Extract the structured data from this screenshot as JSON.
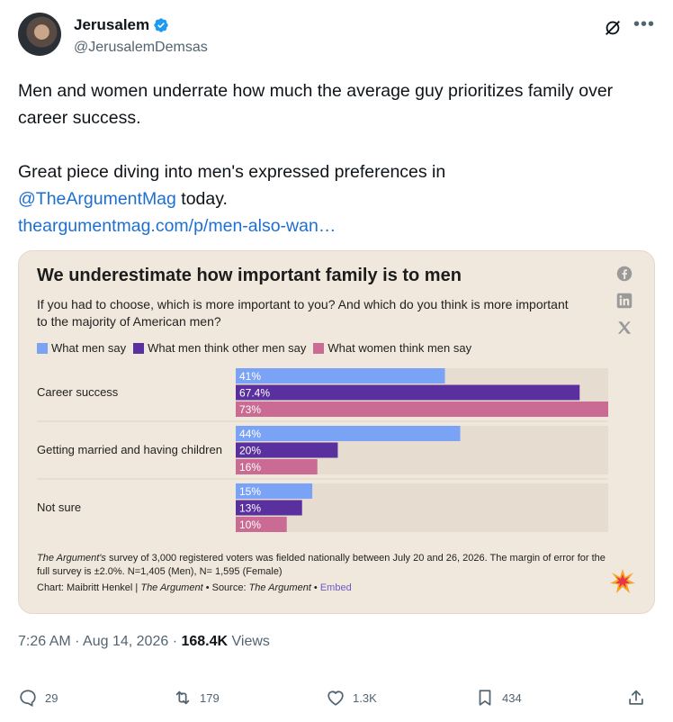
{
  "author": {
    "display_name": "Jerusalem",
    "handle": "@JerusalemDemsas"
  },
  "tweet": {
    "line1": "Men and women underrate how much the average guy prioritizes family over career success.",
    "line2_prefix": "Great piece diving into men's expressed preferences in",
    "mention": "@TheArgumentMag",
    "line2_suffix": " today.",
    "link": "theargumentmag.com/p/men-also-wan…"
  },
  "card": {
    "share_icons": [
      "facebook-icon",
      "linkedin-icon",
      "x-icon"
    ],
    "footnote_source": "The Argument's",
    "footnote_rest": " survey of 3,000 registered voters was fielded nationally between July 20 and 26, 2026. The margin of error for the full survey is ±2.0%. N=1,405 (Men), N= 1,595 (Female)",
    "credit_prefix": "Chart: Maibritt Henkel | ",
    "credit_pub": "The Argument",
    "credit_source_prefix": " • Source: ",
    "credit_source": "The Argument",
    "credit_sep": " • ",
    "embed": "Embed"
  },
  "chart_data": {
    "type": "bar",
    "orientation": "horizontal",
    "title": "We underestimate how important family is to men",
    "subtitle": "If you had to choose, which is more important to you? And which do you think is more important to the majority of American men?",
    "categories": [
      "Career success",
      "Getting married and having children",
      "Not sure"
    ],
    "series": [
      {
        "name": "What men say",
        "color": "#7ba3f5",
        "values": [
          41,
          44,
          15
        ],
        "labels": [
          "41%",
          "44%",
          "15%"
        ]
      },
      {
        "name": "What men think other men say",
        "color": "#5a2f9e",
        "values": [
          67.4,
          20,
          13
        ],
        "labels": [
          "67.4%",
          "20%",
          "13%"
        ]
      },
      {
        "name": "What women think men say",
        "color": "#c96b93",
        "values": [
          73,
          16,
          10
        ],
        "labels": [
          "73%",
          "16%",
          "10%"
        ]
      }
    ],
    "xlim": [
      0,
      73
    ],
    "legend": "top-left",
    "grid": false
  },
  "meta": {
    "time": "7:26 AM",
    "sep": " · ",
    "date": "Aug 14, 2026",
    "views_count": "168.4K",
    "views_label": " Views"
  },
  "actions": {
    "replies": "29",
    "reposts": "179",
    "likes": "1.3K",
    "bookmarks": "434"
  },
  "colors": {
    "verified": "#1d9bf0",
    "link": "#1d6fd1",
    "card_bg": "#f0e8dc",
    "track": "#e6ddd0"
  }
}
